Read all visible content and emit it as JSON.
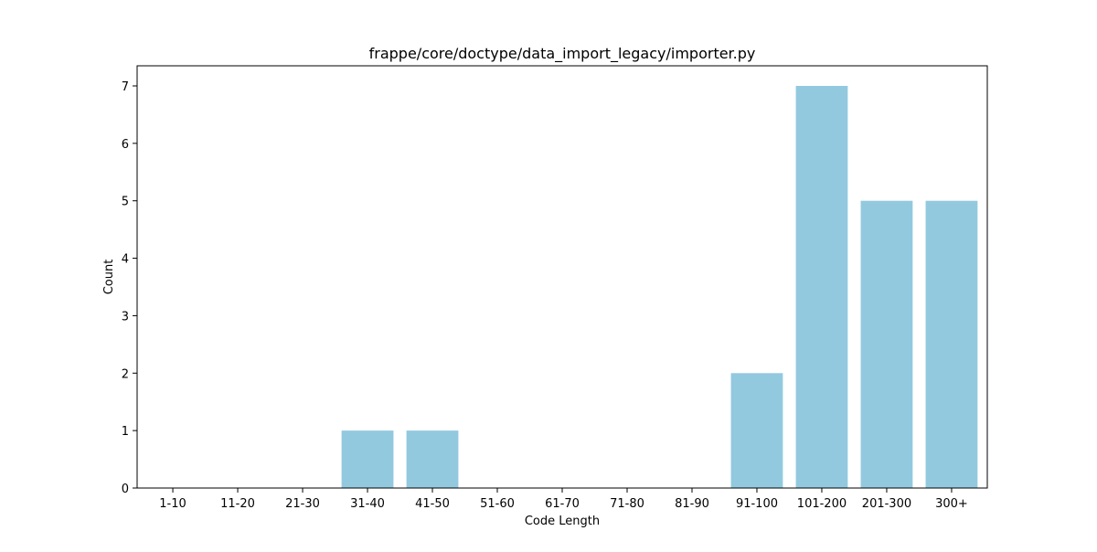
{
  "chart_data": {
    "type": "bar",
    "title": "frappe/core/doctype/data_import_legacy/importer.py",
    "xlabel": "Code Length",
    "ylabel": "Count",
    "categories": [
      "1-10",
      "11-20",
      "21-30",
      "31-40",
      "41-50",
      "51-60",
      "61-70",
      "71-80",
      "81-90",
      "91-100",
      "101-200",
      "201-300",
      "300+"
    ],
    "values": [
      0,
      0,
      0,
      1,
      1,
      0,
      0,
      0,
      0,
      2,
      7,
      5,
      5
    ],
    "ylim": [
      0,
      7.35
    ],
    "yticks": [
      0,
      1,
      2,
      3,
      4,
      5,
      6,
      7
    ],
    "bar_color": "#92c9df",
    "grid": false,
    "legend": "none"
  }
}
